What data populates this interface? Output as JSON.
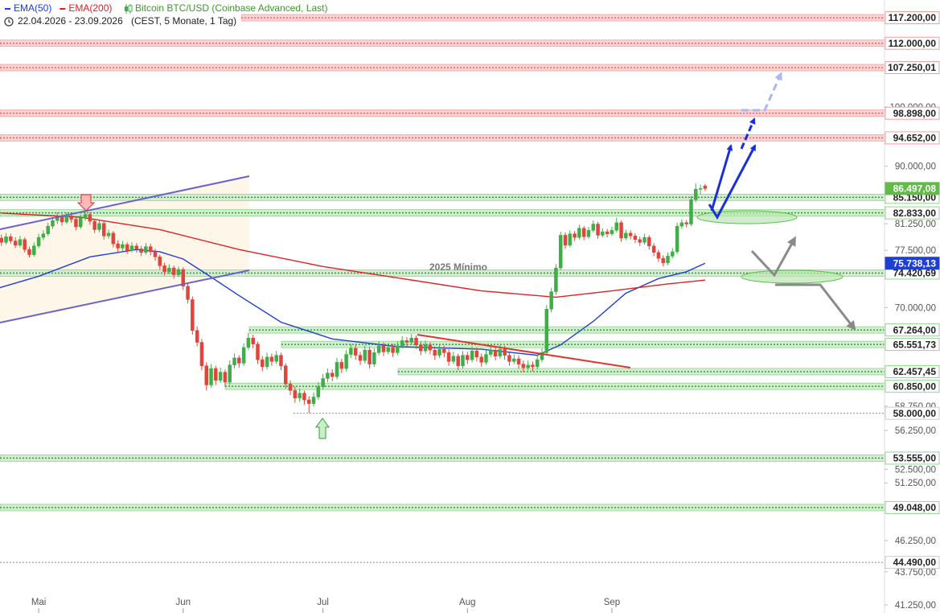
{
  "chart_data": {
    "type": "candlestick",
    "title": "Bitcoin BTC/USD (Coinbase Advanced, Last)",
    "subtitle": "22.04.2026 - 23.09.2026",
    "subtitle_note": "(CEST, 5 Monate, 1 Tag)",
    "annotations": [
      "2025 Mínimo"
    ],
    "log_scale": true,
    "up_color": "#3fae49",
    "down_color": "#e0453c",
    "xlim": [
      0.7,
      190.5
    ],
    "xticks": [
      {
        "value": 9,
        "label": "Mai"
      },
      {
        "value": 40,
        "label": "Jun"
      },
      {
        "value": 70,
        "label": "Jul"
      },
      {
        "value": 101,
        "label": "Aug"
      },
      {
        "value": 132,
        "label": "Sep"
      }
    ],
    "ylim": [
      40660,
      120950
    ],
    "yticks": [
      {
        "value": 100000,
        "label": "100.000,00"
      },
      {
        "value": 90000,
        "label": "90.000,00"
      },
      {
        "value": 81250,
        "label": "81.250,00"
      },
      {
        "value": 77500,
        "label": "77.500,00"
      },
      {
        "value": 70000,
        "label": "70.000,00"
      },
      {
        "value": 58750,
        "label": "58.750,00"
      },
      {
        "value": 56250,
        "label": "56.250,00"
      },
      {
        "value": 52500,
        "label": "52.500,00"
      },
      {
        "value": 51250,
        "label": "51.250,00"
      },
      {
        "value": 46250,
        "label": "46.250,00"
      },
      {
        "value": 43750,
        "label": "43.750,00"
      },
      {
        "value": 41250,
        "label": "41.250,00"
      }
    ],
    "candles": {
      "open": [
        79500,
        79200,
        78600,
        79400,
        78800,
        78200,
        79000,
        77600,
        76900,
        78100,
        79300,
        79800,
        80900,
        81700,
        82300,
        81500,
        82400,
        81900,
        80800,
        82100,
        82600,
        81600,
        80400,
        81300,
        79500,
        79900,
        78400,
        77800,
        78300,
        77500,
        78100,
        77700,
        77200,
        78000,
        77300,
        76600,
        75400,
        74600,
        75100,
        74200,
        74900,
        72700,
        71000,
        67200,
        65800,
        63100,
        61000,
        62800,
        61500,
        62400,
        61300,
        63200,
        64000,
        63400,
        65200,
        66300,
        65600,
        63800,
        63000,
        64100,
        63600,
        64300,
        63100,
        61100,
        60400,
        59600,
        60100,
        59400,
        59000,
        59700,
        60800,
        61700,
        62300,
        61900,
        63500,
        62800,
        64400,
        65100,
        64300,
        63700,
        64900,
        63300,
        64600,
        65400,
        64700,
        65200,
        64600,
        65400,
        66000,
        65800,
        66300,
        65500,
        64800,
        65500,
        64900,
        64300,
        65000,
        64600,
        63600,
        64200,
        63100,
        64300,
        63800,
        64800,
        64100,
        63500,
        64400,
        64900,
        64200,
        65000,
        64300,
        63600,
        63900,
        63300,
        62900,
        63200,
        63000,
        63800,
        64600,
        69800,
        72000,
        75100,
        79600,
        78200,
        79800,
        79300,
        80600,
        79400,
        80300,
        81200,
        79600,
        80100,
        79800,
        80300,
        81400,
        79200,
        79900,
        79500,
        79000,
        78600,
        79300,
        78100,
        77200,
        76400,
        75800,
        76700,
        77300,
        80900,
        81400,
        81200,
        84800,
        86400,
        86900
      ],
      "high": [
        80100,
        79700,
        79900,
        79800,
        79300,
        79500,
        79300,
        78000,
        78600,
        79800,
        80300,
        81400,
        82200,
        82900,
        82700,
        82900,
        82800,
        82300,
        82600,
        83100,
        82900,
        81900,
        81800,
        81600,
        80400,
        80200,
        78900,
        78800,
        78600,
        78600,
        78500,
        78100,
        78500,
        78400,
        77700,
        76900,
        75800,
        75600,
        75400,
        75300,
        75200,
        73100,
        71400,
        67700,
        66200,
        63500,
        63300,
        63100,
        62900,
        62700,
        63700,
        64500,
        64300,
        65700,
        66900,
        66700,
        65900,
        64200,
        64600,
        64500,
        64800,
        64600,
        63400,
        61500,
        60800,
        60600,
        60400,
        59800,
        60200,
        61300,
        62200,
        62800,
        62700,
        64000,
        63900,
        64900,
        65600,
        65500,
        64700,
        65400,
        65300,
        65100,
        65900,
        65800,
        65700,
        65600,
        65900,
        66500,
        66400,
        66800,
        66600,
        65900,
        66000,
        65800,
        65300,
        65500,
        65400,
        65000,
        64700,
        64500,
        64800,
        64700,
        65300,
        65200,
        64500,
        64900,
        65400,
        65300,
        65500,
        65400,
        64700,
        64400,
        64300,
        63700,
        63700,
        63600,
        64300,
        65100,
        70300,
        72500,
        75600,
        80100,
        80000,
        80300,
        80200,
        81100,
        80900,
        80800,
        81700,
        81500,
        80600,
        80500,
        80800,
        82100,
        81700,
        80400,
        80300,
        79900,
        79400,
        79800,
        79600,
        78500,
        77600,
        76800,
        77200,
        77800,
        81400,
        81900,
        81800,
        85300,
        87300,
        87100,
        87200
      ],
      "low": [
        78700,
        78100,
        78300,
        78400,
        77800,
        77900,
        77200,
        76500,
        76600,
        77800,
        78900,
        79500,
        80500,
        81200,
        81000,
        81200,
        81400,
        80300,
        80500,
        81700,
        81100,
        79900,
        80000,
        79000,
        79100,
        77900,
        77300,
        77400,
        77000,
        77200,
        77200,
        76700,
        76900,
        76800,
        76100,
        74900,
        74100,
        74300,
        73700,
        73900,
        72200,
        70500,
        66700,
        65300,
        62600,
        60400,
        60700,
        61000,
        61200,
        60800,
        61000,
        62800,
        62900,
        63100,
        64900,
        65100,
        63300,
        62500,
        62700,
        63100,
        63300,
        62600,
        60600,
        59900,
        59100,
        59200,
        58900,
        58000,
        58700,
        59400,
        60500,
        61300,
        61400,
        61600,
        62300,
        62500,
        64000,
        63800,
        63200,
        63400,
        62800,
        63000,
        64300,
        64200,
        64400,
        64100,
        64300,
        65100,
        65300,
        65500,
        65000,
        64300,
        64500,
        64400,
        63800,
        64000,
        64100,
        63100,
        63300,
        62600,
        62800,
        63300,
        63500,
        63600,
        63000,
        63200,
        64100,
        63700,
        63900,
        63800,
        63100,
        63300,
        62800,
        62400,
        62600,
        62500,
        62700,
        63500,
        64300,
        69400,
        71600,
        74800,
        77700,
        77900,
        78800,
        79000,
        78900,
        79100,
        80000,
        79100,
        79300,
        79300,
        79500,
        80000,
        78700,
        78900,
        79000,
        78500,
        78100,
        78300,
        77600,
        76700,
        75900,
        75300,
        75500,
        76400,
        77000,
        80500,
        80700,
        80900,
        84400,
        85600,
        86100
      ],
      "close": [
        79200,
        78600,
        79400,
        78800,
        78200,
        79000,
        77600,
        76900,
        78100,
        79300,
        79800,
        80900,
        81700,
        82300,
        81500,
        82400,
        81900,
        80800,
        82100,
        82600,
        81600,
        80400,
        81300,
        79500,
        79900,
        78400,
        77800,
        78300,
        77500,
        78100,
        77700,
        77200,
        78000,
        77300,
        76600,
        75400,
        74600,
        75100,
        74200,
        74900,
        72700,
        71000,
        67200,
        65800,
        63100,
        61000,
        62800,
        61500,
        62400,
        61300,
        63200,
        64000,
        63400,
        65200,
        66300,
        65600,
        63800,
        63000,
        64100,
        63600,
        64300,
        63100,
        61100,
        60400,
        59600,
        60100,
        59400,
        59000,
        59700,
        60800,
        61700,
        62300,
        61900,
        63500,
        62800,
        64400,
        65100,
        64300,
        63700,
        64900,
        63300,
        64600,
        65400,
        64700,
        65200,
        64600,
        65400,
        66000,
        65800,
        66300,
        65500,
        64800,
        65500,
        64900,
        64300,
        65000,
        64600,
        63600,
        64200,
        63100,
        64300,
        63800,
        64800,
        64100,
        63500,
        64400,
        64900,
        64200,
        65000,
        64300,
        63600,
        63900,
        63300,
        62900,
        63200,
        63000,
        63800,
        64600,
        69800,
        72000,
        75100,
        79600,
        78200,
        79800,
        79300,
        80600,
        79400,
        80300,
        81200,
        79600,
        80100,
        79800,
        80300,
        81400,
        79200,
        79900,
        79500,
        79000,
        78600,
        79300,
        78100,
        77200,
        76400,
        75800,
        76700,
        77300,
        80900,
        81400,
        81200,
        84800,
        86400,
        86500,
        86497.08
      ]
    },
    "series": [
      {
        "name": "EMA(50)",
        "color": "#1e3fd4",
        "x": [
          0,
          9,
          20,
          30,
          35,
          40,
          45,
          52,
          61,
          72,
          86,
          104,
          116,
          121,
          128,
          135,
          142,
          148,
          152
        ],
        "values": [
          72400,
          74000,
          76600,
          77600,
          77300,
          76300,
          74300,
          71500,
          68200,
          66200,
          65300,
          65000,
          64300,
          65500,
          68300,
          71800,
          73700,
          74600,
          75738.13
        ]
      },
      {
        "name": "EMA(200)",
        "color": "#e02020",
        "x": [
          1,
          18,
          35,
          52,
          70,
          87,
          104,
          120,
          132,
          144,
          152
        ],
        "values": [
          82800,
          82200,
          80400,
          77600,
          75300,
          73700,
          72100,
          71300,
          72100,
          73000,
          73500
        ]
      }
    ],
    "levels": [
      {
        "value": 117200,
        "label": "117.200,00",
        "kind": "resistance"
      },
      {
        "value": 112000,
        "label": "112.000,00",
        "kind": "resistance"
      },
      {
        "value": 107250.01,
        "label": "107.250,01",
        "kind": "resistance"
      },
      {
        "value": 98898,
        "label": "98.898,00",
        "kind": "resistance"
      },
      {
        "value": 94652,
        "label": "94.652,00",
        "kind": "resistance"
      },
      {
        "value": 86497.08,
        "label": "86.497,08",
        "kind": "price"
      },
      {
        "value": 85150,
        "label": "85.150,00",
        "kind": "support"
      },
      {
        "value": 82833,
        "label": "82.833,00",
        "kind": "support"
      },
      {
        "value": 75738.13,
        "label": "75.738,13",
        "kind": "ema"
      },
      {
        "value": 74420.69,
        "label": "74.420,69",
        "kind": "support"
      },
      {
        "value": 67264,
        "label": "67.264,00",
        "kind": "support"
      },
      {
        "value": 65551.73,
        "label": "65.551,73",
        "kind": "support"
      },
      {
        "value": 62457.45,
        "label": "62.457,45",
        "kind": "support"
      },
      {
        "value": 60850,
        "label": "60.850,00",
        "kind": "support"
      },
      {
        "value": 58000,
        "label": "58.000,00",
        "kind": "line"
      },
      {
        "value": 53555,
        "label": "53.555,00",
        "kind": "support"
      },
      {
        "value": 49048,
        "label": "49.048,00",
        "kind": "support"
      },
      {
        "value": 44490,
        "label": "44.490,00",
        "kind": "line"
      }
    ]
  }
}
